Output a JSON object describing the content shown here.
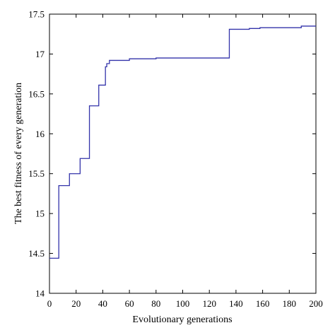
{
  "chart_data": {
    "type": "line",
    "title": "",
    "xlabel": "Evolutionary generations",
    "ylabel": "The best fitness of every generation",
    "xlim": [
      0,
      200
    ],
    "ylim": [
      14,
      17.5
    ],
    "x_ticks": [
      0,
      20,
      40,
      60,
      80,
      100,
      120,
      140,
      160,
      180,
      200
    ],
    "y_ticks": [
      14,
      14.5,
      15,
      15.5,
      16,
      16.5,
      17,
      17.5
    ],
    "x_tick_labels": [
      "0",
      "20",
      "40",
      "60",
      "80",
      "100",
      "120",
      "140",
      "160",
      "180",
      "200"
    ],
    "y_tick_labels": [
      "14",
      "14.5",
      "15",
      "15.5",
      "16",
      "16.5",
      "17",
      "17.5"
    ],
    "grid": false,
    "legend": "none",
    "series": [
      {
        "color": "#3333aa",
        "step": true,
        "x": [
          0,
          7,
          15,
          21,
          23,
          29,
          30,
          36,
          37,
          39,
          42,
          43,
          45,
          58,
          60,
          80,
          134,
          135,
          150,
          158,
          188,
          189,
          200
        ],
        "values": [
          14.44,
          15.35,
          15.5,
          15.5,
          15.69,
          15.69,
          16.35,
          16.35,
          16.61,
          16.61,
          16.84,
          16.88,
          16.92,
          16.92,
          16.94,
          16.95,
          16.95,
          17.31,
          17.32,
          17.33,
          17.33,
          17.35,
          17.35
        ]
      }
    ]
  }
}
